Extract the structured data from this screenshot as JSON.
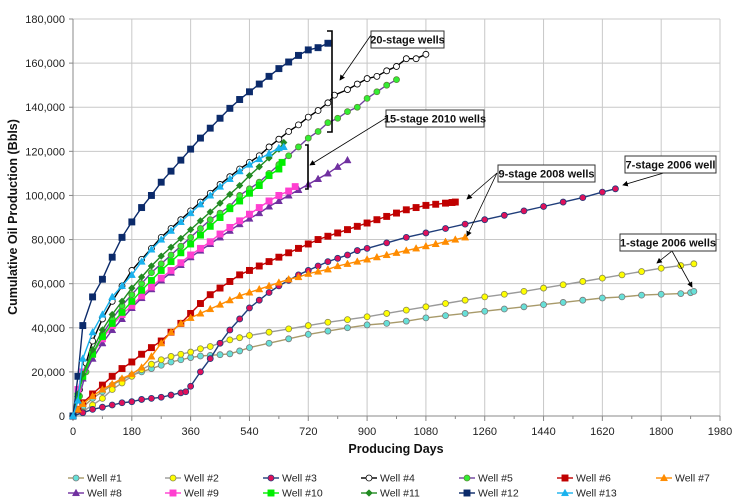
{
  "chart_data": {
    "type": "line",
    "title": "",
    "xlabel": "Producing Days",
    "ylabel": "Cumulative Oil Production (Bbls)",
    "xlim": [
      0,
      1980
    ],
    "ylim": [
      0,
      180000
    ],
    "xticks": [
      0,
      180,
      360,
      540,
      720,
      900,
      1080,
      1260,
      1440,
      1620,
      1800,
      1980
    ],
    "yticks": [
      0,
      20000,
      40000,
      60000,
      80000,
      100000,
      120000,
      140000,
      160000,
      180000
    ],
    "xtick_labels": [
      "0",
      "180",
      "360",
      "540",
      "720",
      "900",
      "1080",
      "1260",
      "1440",
      "1620",
      "1800",
      "1980"
    ],
    "ytick_labels": [
      "0",
      "20,000",
      "40,000",
      "60,000",
      "80,000",
      "100,000",
      "120,000",
      "140,000",
      "160,000",
      "180,000"
    ],
    "grid": true,
    "legend_position": "bottom",
    "series": [
      {
        "name": "Well #1",
        "line": "#a89a6a",
        "fill": "#66e0d8",
        "stroke": "#7a7a7a",
        "marker": "circle",
        "x": [
          0,
          30,
          60,
          90,
          120,
          150,
          180,
          210,
          240,
          270,
          300,
          330,
          360,
          390,
          420,
          450,
          480,
          510,
          540,
          600,
          660,
          720,
          780,
          840,
          900,
          960,
          1020,
          1080,
          1140,
          1200,
          1260,
          1320,
          1380,
          1440,
          1500,
          1560,
          1620,
          1680,
          1740,
          1800,
          1860,
          1890,
          1900
        ],
        "y": [
          0,
          4000,
          8000,
          11000,
          14000,
          16500,
          18500,
          20000,
          21500,
          23000,
          24500,
          25500,
          26500,
          27200,
          27500,
          27800,
          28200,
          29500,
          31000,
          33000,
          35000,
          37000,
          38500,
          40000,
          41300,
          42000,
          43000,
          44500,
          45500,
          46500,
          47500,
          48500,
          49500,
          50500,
          51500,
          52500,
          53500,
          54000,
          54800,
          55200,
          55500,
          55900,
          56500
        ]
      },
      {
        "name": "Well #2",
        "line": "#9a9a9a",
        "fill": "#ffff00",
        "stroke": "#8a8a50",
        "marker": "circle",
        "x": [
          0,
          30,
          60,
          90,
          120,
          150,
          180,
          210,
          240,
          270,
          300,
          330,
          360,
          390,
          420,
          450,
          480,
          510,
          540,
          600,
          660,
          720,
          780,
          840,
          900,
          960,
          1020,
          1080,
          1140,
          1200,
          1260,
          1320,
          1380,
          1440,
          1500,
          1560,
          1620,
          1680,
          1740,
          1800,
          1860,
          1900
        ],
        "y": [
          0,
          2000,
          5000,
          8000,
          12000,
          15000,
          18000,
          21000,
          23500,
          25500,
          27000,
          28000,
          29000,
          30500,
          31500,
          33000,
          34500,
          35500,
          36500,
          38000,
          39500,
          41000,
          42500,
          43700,
          45000,
          46500,
          48000,
          49500,
          51000,
          52500,
          54000,
          55200,
          56500,
          58000,
          59500,
          61000,
          62500,
          64000,
          65500,
          67000,
          68200,
          69000
        ]
      },
      {
        "name": "Well #3",
        "line": "#1f3d7a",
        "fill": "#e0105a",
        "stroke": "#1f3d7a",
        "marker": "circle",
        "x": [
          0,
          30,
          60,
          90,
          120,
          150,
          180,
          210,
          240,
          270,
          300,
          330,
          345,
          360,
          390,
          420,
          450,
          480,
          510,
          540,
          570,
          600,
          630,
          660,
          690,
          720,
          750,
          780,
          810,
          840,
          870,
          900,
          960,
          1020,
          1080,
          1140,
          1200,
          1260,
          1320,
          1380,
          1440,
          1500,
          1560,
          1620,
          1660
        ],
        "y": [
          0,
          1500,
          3000,
          4000,
          5000,
          6000,
          6500,
          7500,
          8000,
          8500,
          9500,
          10500,
          11000,
          13500,
          20000,
          26000,
          33000,
          39000,
          44000,
          49000,
          52500,
          56000,
          59000,
          61500,
          64000,
          66000,
          68000,
          70000,
          71500,
          73000,
          75000,
          76000,
          78500,
          81000,
          83000,
          85000,
          87000,
          89000,
          91000,
          93000,
          95000,
          97000,
          99000,
          101500,
          103000
        ]
      },
      {
        "name": "Well #4",
        "line": "#000000",
        "fill": "#ffffff",
        "stroke": "#000000",
        "marker": "circle",
        "x": [
          0,
          20,
          40,
          60,
          90,
          120,
          150,
          180,
          210,
          240,
          270,
          300,
          330,
          360,
          390,
          420,
          450,
          480,
          510,
          540,
          570,
          600,
          630,
          660,
          690,
          720,
          750,
          780,
          800,
          840,
          870,
          900,
          930,
          960,
          990,
          1020,
          1050,
          1080
        ],
        "y": [
          0,
          12000,
          24000,
          34000,
          44000,
          52000,
          59000,
          66000,
          71000,
          76000,
          81000,
          85000,
          89000,
          93000,
          97000,
          101000,
          105000,
          108500,
          112000,
          115000,
          118000,
          122000,
          125500,
          129000,
          132000,
          135500,
          138500,
          142000,
          145500,
          148000,
          150500,
          153000,
          154000,
          156500,
          158500,
          162000,
          162000,
          164000
        ]
      },
      {
        "name": "Well #5",
        "line": "#7040a0",
        "fill": "#33ee33",
        "stroke": "#5a8a3a",
        "marker": "circle",
        "x": [
          0,
          20,
          40,
          60,
          90,
          120,
          150,
          180,
          210,
          240,
          270,
          300,
          330,
          360,
          390,
          420,
          450,
          480,
          510,
          540,
          570,
          600,
          630,
          660,
          690,
          720,
          750,
          780,
          810,
          840,
          870,
          900,
          930,
          960,
          990
        ],
        "y": [
          0,
          9000,
          20000,
          28000,
          37000,
          44000,
          50000,
          55000,
          60000,
          65000,
          69000,
          73000,
          77000,
          81000,
          85000,
          89000,
          92000,
          95000,
          100000,
          103000,
          106000,
          110000,
          114000,
          118000,
          122000,
          126000,
          129000,
          133000,
          135000,
          138000,
          140000,
          144000,
          147000,
          150000,
          152500
        ]
      },
      {
        "name": "Well #6",
        "line": "#c00000",
        "fill": "#c00000",
        "stroke": "#c00000",
        "marker": "square",
        "x": [
          0,
          15,
          30,
          60,
          90,
          120,
          150,
          180,
          210,
          240,
          270,
          300,
          330,
          360,
          390,
          420,
          450,
          480,
          510,
          540,
          570,
          600,
          630,
          660,
          690,
          720,
          750,
          780,
          810,
          840,
          870,
          900,
          930,
          960,
          990,
          1020,
          1050,
          1080,
          1110,
          1140,
          1160,
          1170
        ],
        "y": [
          0,
          3000,
          6000,
          10000,
          14000,
          18000,
          21500,
          24500,
          28000,
          31000,
          34000,
          38000,
          42000,
          46500,
          51000,
          55000,
          58000,
          61000,
          64000,
          66000,
          68000,
          70000,
          72000,
          74000,
          76000,
          78000,
          80000,
          81500,
          83000,
          84500,
          86000,
          87500,
          89000,
          90500,
          92000,
          93500,
          94500,
          95500,
          96000,
          96500,
          96800,
          97000
        ]
      },
      {
        "name": "Well #7",
        "line": "#ff8c00",
        "fill": "#ff8c00",
        "stroke": "#ff8c00",
        "marker": "triangle",
        "x": [
          0,
          15,
          30,
          60,
          90,
          120,
          150,
          180,
          210,
          240,
          270,
          300,
          330,
          360,
          390,
          420,
          450,
          480,
          510,
          540,
          570,
          600,
          630,
          660,
          690,
          720,
          750,
          780,
          810,
          840,
          870,
          900,
          930,
          960,
          990,
          1020,
          1050,
          1080,
          1110,
          1140,
          1170,
          1200
        ],
        "y": [
          0,
          3000,
          5500,
          9000,
          12000,
          14500,
          17000,
          19000,
          22000,
          27000,
          33000,
          38000,
          42000,
          44500,
          46500,
          48500,
          50500,
          52500,
          54500,
          56000,
          57500,
          59000,
          60500,
          62000,
          63000,
          64500,
          65500,
          66500,
          68000,
          69000,
          70000,
          71000,
          72000,
          73000,
          74000,
          75000,
          76000,
          77000,
          78000,
          79000,
          80000,
          81000
        ]
      },
      {
        "name": "Well #8",
        "line": "#7030a0",
        "fill": "#7030a0",
        "stroke": "#7030a0",
        "marker": "triangle",
        "x": [
          0,
          15,
          30,
          60,
          90,
          120,
          150,
          180,
          210,
          240,
          270,
          300,
          330,
          360,
          390,
          420,
          450,
          480,
          510,
          540,
          570,
          600,
          630,
          660,
          690,
          720,
          750,
          780,
          810,
          840
        ],
        "y": [
          0,
          10000,
          17000,
          26000,
          33000,
          39000,
          44000,
          49000,
          53500,
          57500,
          61500,
          65000,
          68500,
          72000,
          75000,
          78000,
          81000,
          84000,
          87000,
          89500,
          92000,
          95000,
          97500,
          100000,
          102500,
          105000,
          107500,
          110000,
          113000,
          116000
        ]
      },
      {
        "name": "Well #9",
        "line": "#ff3fd0",
        "fill": "#ff3fd0",
        "stroke": "#ff3fd0",
        "marker": "square",
        "x": [
          0,
          15,
          30,
          60,
          90,
          120,
          150,
          180,
          210,
          240,
          270,
          300,
          330,
          360,
          390,
          420,
          450,
          480,
          510,
          540,
          570,
          600,
          630,
          660,
          680
        ],
        "y": [
          0,
          12000,
          20000,
          28000,
          35000,
          41000,
          46000,
          50000,
          54500,
          58500,
          62500,
          66000,
          69500,
          73000,
          76000,
          79000,
          82500,
          85500,
          88500,
          91500,
          94500,
          97500,
          100000,
          102000,
          104000
        ]
      },
      {
        "name": "Well #10",
        "line": "#00ee00",
        "fill": "#00ee00",
        "stroke": "#00ee00",
        "marker": "square",
        "x": [
          0,
          15,
          30,
          60,
          90,
          120,
          150,
          180,
          210,
          240,
          270,
          300,
          330,
          360,
          390,
          420,
          450,
          480,
          510,
          540,
          570,
          600,
          630,
          640
        ],
        "y": [
          0,
          9000,
          18000,
          28000,
          36000,
          42000,
          47000,
          52000,
          57000,
          61500,
          66000,
          70000,
          74000,
          78000,
          82000,
          86000,
          90000,
          94000,
          97500,
          101000,
          104500,
          109000,
          112000,
          115000
        ]
      },
      {
        "name": "Well #11",
        "line": "#228b22",
        "fill": "#228b22",
        "stroke": "#228b22",
        "marker": "diamond",
        "x": [
          0,
          15,
          30,
          60,
          90,
          120,
          150,
          180,
          210,
          240,
          270,
          300,
          330,
          360,
          390,
          420,
          450,
          480,
          510,
          540,
          570,
          600,
          630,
          645
        ],
        "y": [
          0,
          10000,
          19000,
          30000,
          39000,
          46000,
          52000,
          58000,
          63000,
          68000,
          72500,
          76500,
          80500,
          84500,
          88500,
          92500,
          96500,
          100500,
          104500,
          109000,
          113000,
          117000,
          121000,
          124000
        ]
      },
      {
        "name": "Well #12",
        "line": "#0b2a6a",
        "fill": "#0b2a6a",
        "stroke": "#0b2a6a",
        "marker": "square",
        "x": [
          0,
          15,
          30,
          60,
          90,
          120,
          150,
          180,
          210,
          240,
          270,
          300,
          330,
          360,
          390,
          420,
          450,
          480,
          510,
          540,
          570,
          600,
          630,
          660,
          690,
          720,
          750,
          780
        ],
        "y": [
          0,
          18000,
          41000,
          54000,
          62000,
          72000,
          81000,
          88000,
          94500,
          100000,
          106000,
          111000,
          116000,
          121000,
          126000,
          130500,
          135000,
          139500,
          143500,
          147000,
          150500,
          154000,
          157500,
          160500,
          163500,
          166000,
          167000,
          169000
        ]
      },
      {
        "name": "Well #13",
        "line": "#1ab2ee",
        "fill": "#1ab2ee",
        "stroke": "#1ab2ee",
        "marker": "triangle",
        "x": [
          0,
          15,
          30,
          60,
          90,
          120,
          150,
          180,
          210,
          240,
          270,
          300,
          330,
          360,
          390,
          420,
          450,
          480,
          510,
          540,
          570,
          600,
          630,
          645
        ],
        "y": [
          0,
          7000,
          26000,
          38000,
          46000,
          54000,
          59000,
          64000,
          70000,
          75500,
          80000,
          84000,
          88000,
          92000,
          96000,
          100000,
          104000,
          107500,
          111000,
          114000,
          116500,
          119000,
          121500,
          122000
        ]
      }
    ],
    "annotations": [
      {
        "text": "20-stage wells",
        "points_to": "bracket around Well #12 and Well #4 ends"
      },
      {
        "text": "15-stage 2010 wells",
        "points_to": "bracket around Wells #8-#13 ends"
      },
      {
        "text": "9-stage 2008 wells",
        "points_to": "Well #6 and Well #7 ends"
      },
      {
        "text": "7-stage 2006 well",
        "points_to": "Well #3 end"
      },
      {
        "text": "1-stage 2006 wells",
        "points_to": "Well #1 and Well #2 ends"
      }
    ]
  }
}
